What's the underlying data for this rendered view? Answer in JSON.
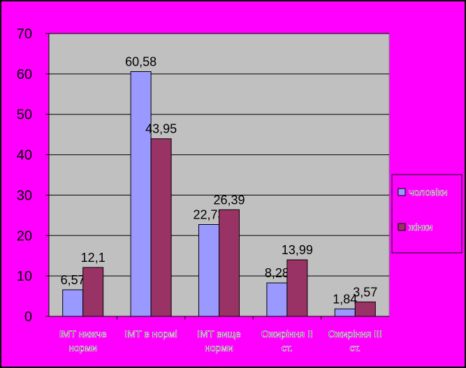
{
  "chart_data": {
    "type": "bar",
    "categories": [
      [
        "ІМТ нижче",
        "норми"
      ],
      [
        "ІМТ в нормі"
      ],
      [
        "ІМТ вище",
        "норми"
      ],
      [
        "Ожиріння ІІ",
        "ст."
      ],
      [
        "Ожиріння ІІІ",
        "ст."
      ]
    ],
    "series": [
      {
        "name": "чоловіки",
        "color": "#9999ff",
        "values": [
          6.57,
          60.58,
          22.73,
          8.28,
          1.84
        ],
        "labels": [
          "6,57",
          "60,58",
          "22,73",
          "8,28",
          "1,84"
        ]
      },
      {
        "name": "жінки",
        "color": "#993366",
        "values": [
          12.1,
          43.95,
          26.39,
          13.99,
          3.57
        ],
        "labels": [
          "12,1",
          "43,95",
          "26,39",
          "13,99",
          "3,57"
        ]
      }
    ],
    "ylim": [
      0,
      70
    ],
    "yticks": [
      0,
      10,
      20,
      30,
      40,
      50,
      60,
      70
    ],
    "grid": true,
    "legend": "right",
    "plot_background": "#c0c0c0",
    "chart_background": "#ff00ff"
  }
}
